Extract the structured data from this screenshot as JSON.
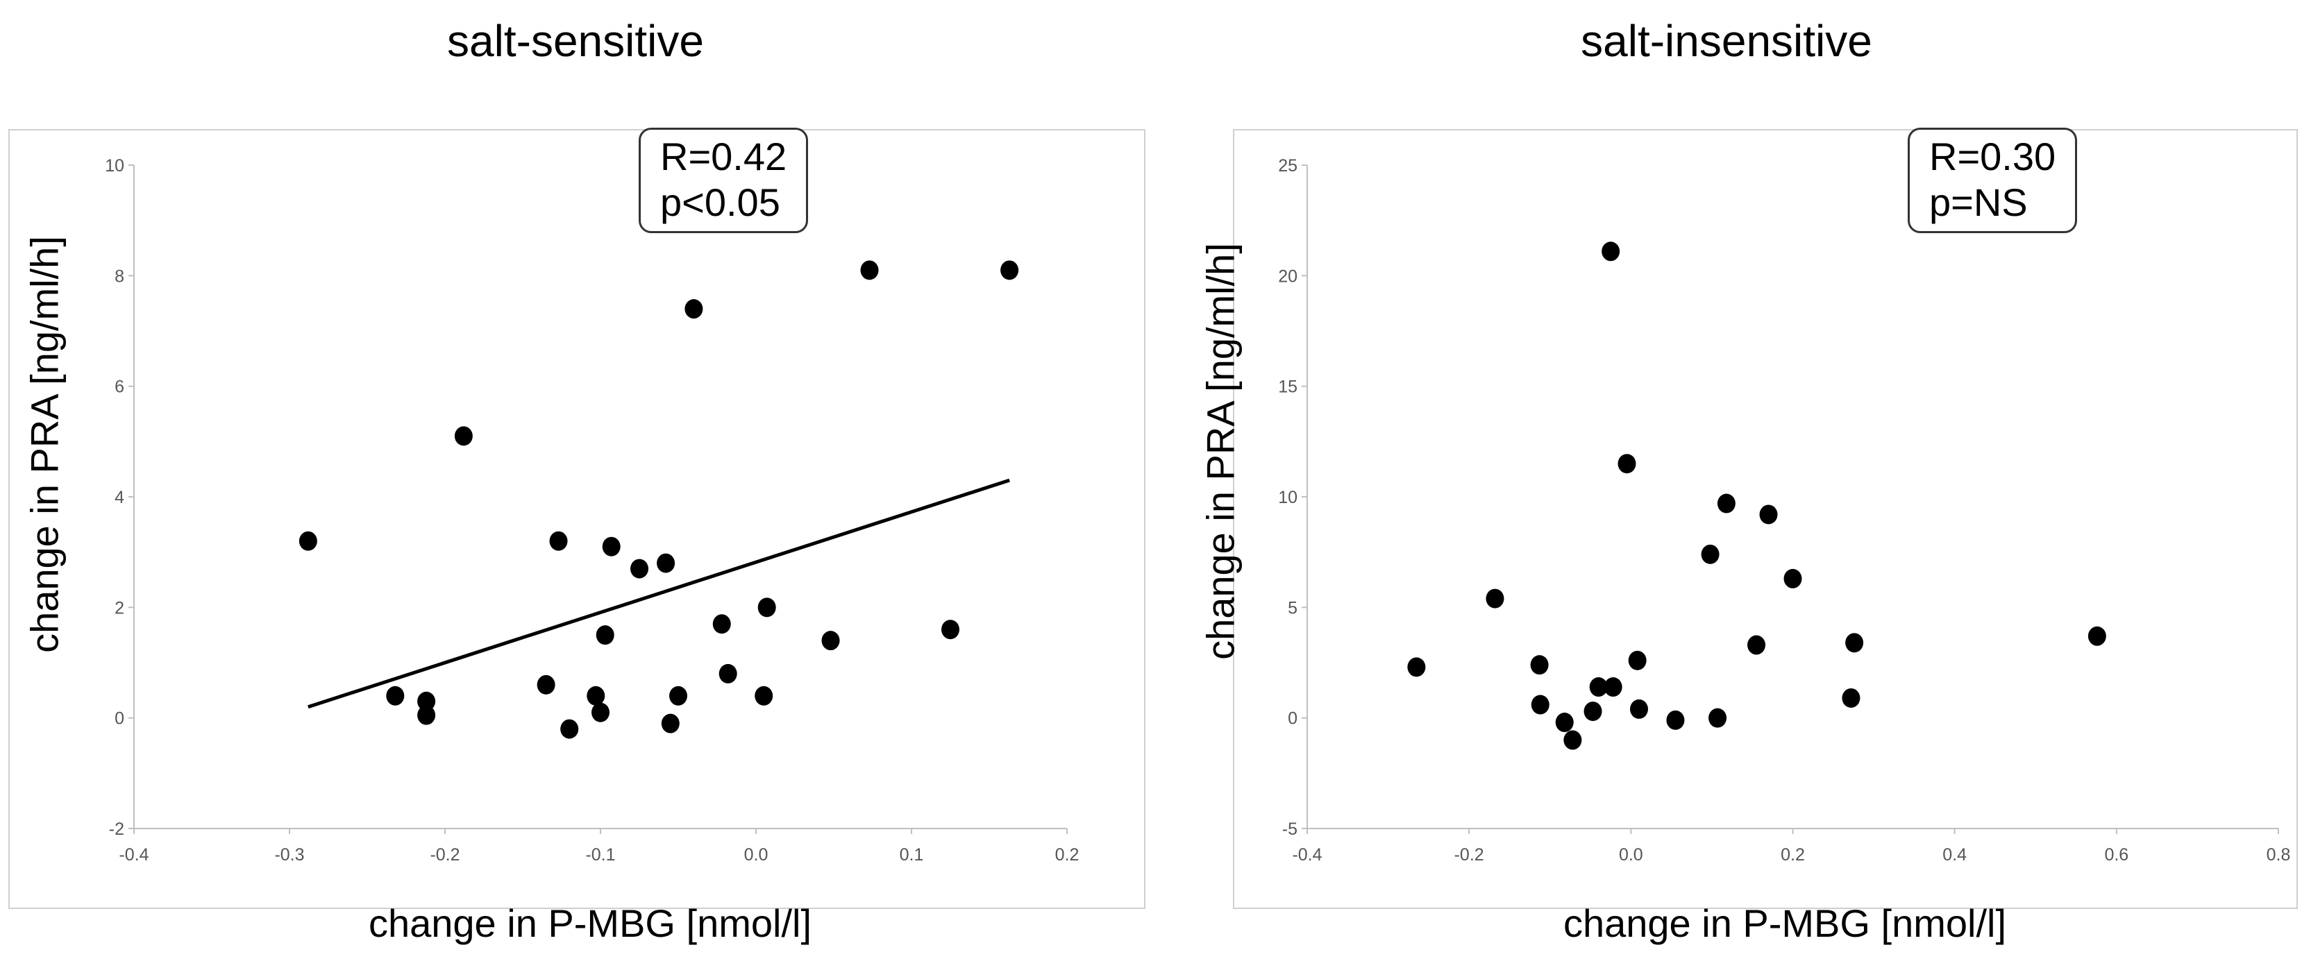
{
  "chart_data": [
    {
      "type": "scatter",
      "title": "salt-sensitive",
      "xlabel": "change in P-MBG [nmol/l]",
      "ylabel": "change in PRA [ng/ml/h]",
      "xlim": [
        -0.4,
        0.2
      ],
      "ylim": [
        -2,
        10
      ],
      "xticks": [
        -0.4,
        -0.3,
        -0.2,
        -0.1,
        0.0,
        0.1,
        0.2
      ],
      "xtick_labels": [
        "-0.4",
        "-0.3",
        "-0.2",
        "-0.1",
        "0.0",
        "0.1",
        "0.2"
      ],
      "yticks": [
        -2,
        0,
        2,
        4,
        6,
        8,
        10
      ],
      "ytick_labels": [
        "-2",
        "0",
        "2",
        "4",
        "6",
        "8",
        "10"
      ],
      "annotation": {
        "r": "R=0.42",
        "p": "p<0.05"
      },
      "points": [
        {
          "x": -0.288,
          "y": 3.2
        },
        {
          "x": -0.232,
          "y": 0.4
        },
        {
          "x": -0.212,
          "y": 0.3
        },
        {
          "x": -0.212,
          "y": 0.05
        },
        {
          "x": -0.188,
          "y": 5.1
        },
        {
          "x": -0.135,
          "y": 0.6
        },
        {
          "x": -0.127,
          "y": 3.2
        },
        {
          "x": -0.12,
          "y": -0.2
        },
        {
          "x": -0.103,
          "y": 0.4
        },
        {
          "x": -0.1,
          "y": 0.1
        },
        {
          "x": -0.097,
          "y": 1.5
        },
        {
          "x": -0.093,
          "y": 3.1
        },
        {
          "x": -0.075,
          "y": 2.7
        },
        {
          "x": -0.058,
          "y": 2.8
        },
        {
          "x": -0.055,
          "y": -0.1
        },
        {
          "x": -0.05,
          "y": 0.4
        },
        {
          "x": -0.04,
          "y": 7.4
        },
        {
          "x": -0.022,
          "y": 1.7
        },
        {
          "x": -0.018,
          "y": 0.8
        },
        {
          "x": 0.005,
          "y": 0.4
        },
        {
          "x": 0.007,
          "y": 2.0
        },
        {
          "x": 0.048,
          "y": 1.4
        },
        {
          "x": 0.073,
          "y": 8.1
        },
        {
          "x": 0.125,
          "y": 1.6
        },
        {
          "x": 0.163,
          "y": 8.1
        }
      ],
      "trendline": {
        "x": [
          -0.288,
          0.163
        ],
        "y": [
          0.2,
          4.3
        ]
      }
    },
    {
      "type": "scatter",
      "title": "salt-insensitive",
      "xlabel": "change in P-MBG [nmol/l]",
      "ylabel": "change in PRA [ng/ml/h]",
      "xlim": [
        -0.4,
        0.8
      ],
      "ylim": [
        -5,
        25
      ],
      "xticks": [
        -0.4,
        -0.2,
        0.0,
        0.2,
        0.4,
        0.6,
        0.8
      ],
      "xtick_labels": [
        "-0.4",
        "-0.2",
        "0.0",
        "0.2",
        "0.4",
        "0.6",
        "0.8"
      ],
      "yticks": [
        -5,
        0,
        5,
        10,
        15,
        20,
        25
      ],
      "ytick_labels": [
        "-5",
        "0",
        "5",
        "10",
        "15",
        "20",
        "25"
      ],
      "annotation": {
        "r": "R=0.30",
        "p": "p=NS"
      },
      "points": [
        {
          "x": -0.265,
          "y": 2.3
        },
        {
          "x": -0.168,
          "y": 5.4
        },
        {
          "x": -0.113,
          "y": 2.4
        },
        {
          "x": -0.112,
          "y": 0.6
        },
        {
          "x": -0.082,
          "y": -0.2
        },
        {
          "x": -0.072,
          "y": -1.0
        },
        {
          "x": -0.047,
          "y": 0.3
        },
        {
          "x": -0.04,
          "y": 1.4
        },
        {
          "x": -0.025,
          "y": 21.1
        },
        {
          "x": -0.022,
          "y": 1.4
        },
        {
          "x": -0.005,
          "y": 11.5
        },
        {
          "x": 0.008,
          "y": 2.6
        },
        {
          "x": 0.01,
          "y": 0.4
        },
        {
          "x": 0.055,
          "y": -0.1
        },
        {
          "x": 0.098,
          "y": 7.4
        },
        {
          "x": 0.107,
          "y": 0.0
        },
        {
          "x": 0.118,
          "y": 9.7
        },
        {
          "x": 0.155,
          "y": 3.3
        },
        {
          "x": 0.17,
          "y": 9.2
        },
        {
          "x": 0.2,
          "y": 6.3
        },
        {
          "x": 0.272,
          "y": 0.9
        },
        {
          "x": 0.276,
          "y": 3.4
        },
        {
          "x": 0.576,
          "y": 3.7
        }
      ]
    }
  ]
}
